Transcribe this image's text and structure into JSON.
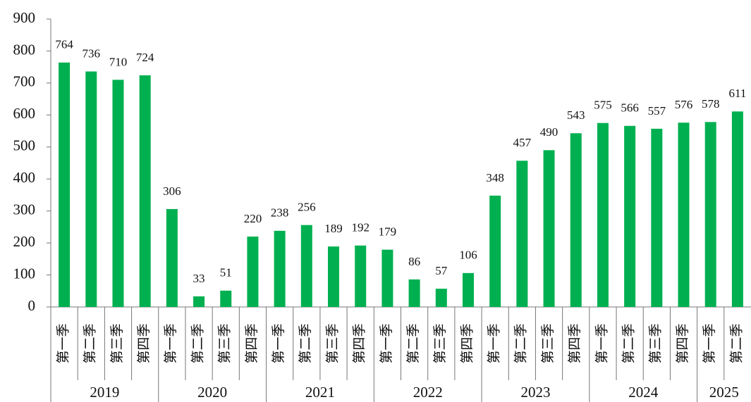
{
  "chart_data": {
    "type": "bar",
    "color": "#00b050",
    "groups": [
      {
        "label": "2019",
        "categories": [
          "第一季",
          "第二季",
          "第三季",
          "第四季"
        ]
      },
      {
        "label": "2020",
        "categories": [
          "第一季",
          "第二季",
          "第三季",
          "第四季"
        ]
      },
      {
        "label": "2021",
        "categories": [
          "第一季",
          "第二季",
          "第三季",
          "第四季"
        ]
      },
      {
        "label": "2022",
        "categories": [
          "第一季",
          "第二季",
          "第三季",
          "第四季"
        ]
      },
      {
        "label": "2023",
        "categories": [
          "第一季",
          "第二季",
          "第三季",
          "第四季"
        ]
      },
      {
        "label": "2024",
        "categories": [
          "第一季",
          "第二季",
          "第三季",
          "第四季"
        ]
      },
      {
        "label": "2025",
        "categories": [
          "第一季",
          "第二季"
        ]
      }
    ],
    "values": [
      764,
      736,
      710,
      724,
      306,
      33,
      51,
      220,
      238,
      256,
      189,
      192,
      179,
      86,
      57,
      106,
      348,
      457,
      490,
      543,
      575,
      566,
      557,
      576,
      578,
      611
    ],
    "ylim": [
      0,
      900
    ],
    "yticks": [
      0,
      100,
      200,
      300,
      400,
      500,
      600,
      700,
      800,
      900
    ]
  }
}
